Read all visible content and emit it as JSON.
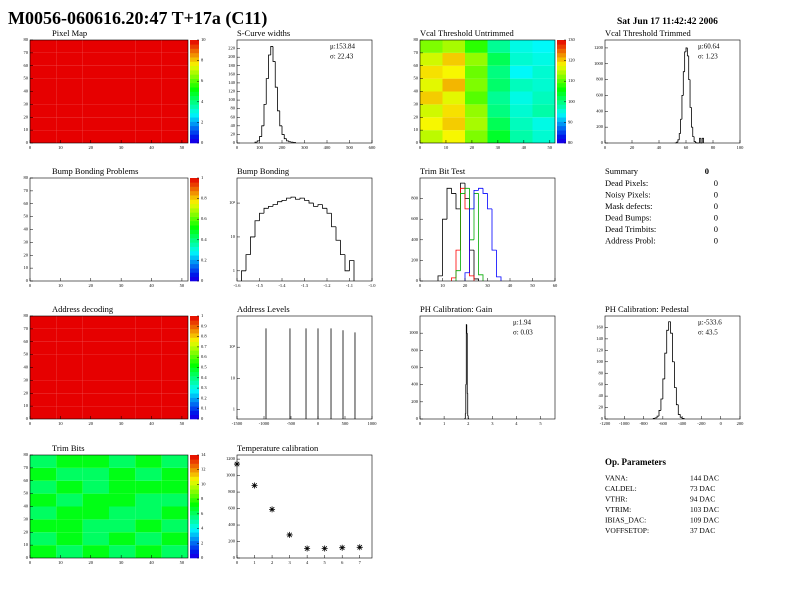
{
  "header": {
    "title": "M0056-060616.20:47 T+17a (C11)",
    "date": "Sat Jun 17 11:42:42 2006"
  },
  "chart_data": [
    {
      "type": "heatmap",
      "title": "Pixel Map",
      "xlim": [
        0,
        52
      ],
      "xticks": [
        0,
        10,
        20,
        30,
        40,
        50
      ],
      "ylim": [
        0,
        80
      ],
      "yticks": [
        0,
        10,
        20,
        30,
        40,
        50,
        60,
        70,
        80
      ],
      "zlim": [
        0,
        10
      ],
      "zticks": [
        0,
        2,
        4,
        6,
        8,
        10
      ],
      "z": [
        [
          10,
          10,
          10,
          10,
          10,
          10
        ],
        [
          10,
          10,
          10,
          10,
          10,
          10
        ],
        [
          10,
          10,
          10,
          10,
          10,
          10
        ],
        [
          10,
          10,
          10,
          10,
          10,
          10
        ],
        [
          10,
          10,
          10,
          10,
          10,
          10
        ],
        [
          10,
          10,
          10,
          10,
          10,
          10
        ],
        [
          10,
          10,
          10,
          10,
          10,
          10
        ],
        [
          10,
          10,
          10,
          10,
          10,
          10
        ]
      ]
    },
    {
      "type": "histogram",
      "title": "S-Curve widths",
      "color": "#000000",
      "xlim": [
        0,
        600
      ],
      "xticks": [
        0,
        100,
        200,
        300,
        400,
        500,
        600
      ],
      "ylim": [
        0,
        240
      ],
      "yticks": [
        0,
        20,
        40,
        60,
        80,
        100,
        120,
        140,
        160,
        180,
        200,
        220
      ],
      "stats": [
        "μ:153.84",
        "σ: 22.43"
      ],
      "bins": [
        80,
        90,
        100,
        110,
        120,
        130,
        140,
        150,
        160,
        170,
        180,
        190,
        200,
        210,
        220,
        230,
        240,
        250,
        260
      ],
      "values": [
        2,
        5,
        15,
        40,
        90,
        150,
        205,
        225,
        190,
        130,
        75,
        40,
        20,
        10,
        5,
        3,
        2,
        1
      ]
    },
    {
      "type": "heatmap",
      "title": "Vcal Threshold Untrimmed",
      "xlim": [
        0,
        52
      ],
      "xticks": [
        0,
        10,
        20,
        30,
        40,
        50
      ],
      "ylim": [
        0,
        80
      ],
      "yticks": [
        0,
        10,
        20,
        30,
        40,
        50,
        60,
        70,
        80
      ],
      "zlim": [
        80,
        130
      ],
      "zticks": [
        80,
        90,
        100,
        110,
        120,
        130
      ],
      "z": [
        [
          115,
          118,
          112,
          104,
          98,
          96
        ],
        [
          118,
          120,
          114,
          102,
          97,
          95
        ],
        [
          116,
          119,
          113,
          100,
          96,
          98
        ],
        [
          120,
          117,
          110,
          99,
          95,
          97
        ],
        [
          117,
          121,
          112,
          101,
          97,
          96
        ],
        [
          119,
          118,
          111,
          100,
          94,
          96
        ],
        [
          116,
          120,
          113,
          102,
          96,
          95
        ],
        [
          112,
          114,
          108,
          99,
          95,
          94
        ]
      ]
    },
    {
      "type": "histogram",
      "title": "Vcal Threshold Trimmed",
      "color": "#000000",
      "xlim": [
        0,
        100
      ],
      "xticks": [
        0,
        20,
        40,
        60,
        80,
        100
      ],
      "ylim": [
        0,
        1300
      ],
      "yticks": [
        0,
        200,
        400,
        600,
        800,
        1000,
        1200
      ],
      "stats": [
        "μ:60.64",
        "σ: 1.23"
      ],
      "bins": [
        52,
        53,
        54,
        55,
        56,
        57,
        58,
        59,
        60,
        61,
        62,
        63,
        64,
        65,
        66,
        67,
        68,
        69,
        70,
        71,
        72,
        73
      ],
      "values": [
        2,
        10,
        40,
        120,
        300,
        600,
        900,
        1150,
        1200,
        1100,
        800,
        450,
        200,
        80,
        20,
        5,
        0,
        0,
        60,
        0,
        60
      ]
    },
    {
      "type": "heatmap",
      "title": "Bump Bonding Problems",
      "xlim": [
        0,
        52
      ],
      "xticks": [
        0,
        10,
        20,
        30,
        40,
        50
      ],
      "ylim": [
        0,
        80
      ],
      "yticks": [
        0,
        10,
        20,
        30,
        40,
        50,
        60,
        70,
        80
      ],
      "zlim": [
        0,
        1
      ],
      "zticks": [
        0,
        0.2,
        0.4,
        0.6,
        0.8,
        1
      ]
    },
    {
      "type": "histogram",
      "title": "Bump Bonding",
      "color": "#000000",
      "logy": true,
      "xlim": [
        -1.6,
        -1.0
      ],
      "xticks": [
        -1.6,
        -1.5,
        -1.4,
        -1.3,
        -1.2,
        -1.1,
        {
          "value": -1.0,
          "label": "-1.0"
        }
      ],
      "ylim": [
        0.5,
        550
      ],
      "yticks": [
        1,
        10,
        {
          "value": 100,
          "label": "10²"
        }
      ],
      "bins": [
        -1.58,
        -1.56,
        -1.54,
        -1.52,
        -1.5,
        -1.48,
        -1.46,
        -1.44,
        -1.42,
        -1.4,
        -1.38,
        -1.36,
        -1.34,
        -1.32,
        -1.3,
        -1.28,
        -1.26,
        -1.24,
        -1.22,
        -1.2,
        -1.18,
        -1.16,
        -1.14,
        -1.12,
        -1.1,
        -1.08
      ],
      "values": [
        1,
        3,
        10,
        30,
        50,
        70,
        80,
        90,
        110,
        120,
        140,
        150,
        130,
        140,
        120,
        100,
        80,
        90,
        70,
        50,
        20,
        8,
        3,
        1,
        2
      ]
    },
    {
      "type": "histograms",
      "title": "Trim Bit Test",
      "xlim": [
        0,
        60
      ],
      "xticks": [
        0,
        10,
        20,
        30,
        40,
        50,
        60
      ],
      "ylim": [
        0,
        1000
      ],
      "yticks": [
        0,
        200,
        400,
        600,
        800
      ],
      "series": [
        {
          "color": "#000000",
          "bins": [
            8,
            10,
            12,
            14,
            16,
            18,
            20,
            22,
            24,
            26
          ],
          "values": [
            50,
            600,
            900,
            850,
            700,
            950,
            800,
            300,
            20
          ]
        },
        {
          "color": "#ff0000",
          "bins": [
            14,
            16,
            18,
            20,
            22,
            24
          ],
          "values": [
            30,
            300,
            900,
            700,
            50
          ]
        },
        {
          "color": "#00aa00",
          "bins": [
            16,
            18,
            20,
            22,
            24,
            26,
            28
          ],
          "values": [
            100,
            850,
            900,
            400,
            850,
            60
          ]
        },
        {
          "color": "#0000ff",
          "bins": [
            20,
            22,
            24,
            26,
            28,
            30,
            32,
            34,
            36
          ],
          "values": [
            80,
            700,
            880,
            900,
            850,
            700,
            300,
            40
          ]
        }
      ]
    },
    {
      "type": "heatmap",
      "title": "Address decoding",
      "xlim": [
        0,
        52
      ],
      "xticks": [
        0,
        10,
        20,
        30,
        40,
        50
      ],
      "ylim": [
        0,
        80
      ],
      "yticks": [
        0,
        10,
        20,
        30,
        40,
        50,
        60,
        70,
        80
      ],
      "zlim": [
        0,
        1
      ],
      "zticks": [
        0,
        0.1,
        0.2,
        0.3,
        0.4,
        0.5,
        0.6,
        0.7,
        0.8,
        0.9,
        1
      ],
      "z": [
        [
          1,
          1,
          1,
          1,
          1,
          1
        ],
        [
          1,
          1,
          1,
          1,
          1,
          1
        ],
        [
          1,
          1,
          1,
          1,
          1,
          1
        ],
        [
          1,
          1,
          1,
          1,
          1,
          1
        ],
        [
          1,
          1,
          1,
          1,
          1,
          1
        ],
        [
          1,
          1,
          1,
          1,
          1,
          1
        ],
        [
          1,
          1,
          1,
          1,
          1,
          1
        ],
        [
          1,
          1,
          1,
          1,
          1,
          1
        ]
      ]
    },
    {
      "type": "spikes",
      "title": "Address Levels",
      "color": "#000000",
      "logy": true,
      "xlim": [
        -1500,
        1000
      ],
      "xticks": [
        -1500,
        -1000,
        -500,
        0,
        500,
        1000
      ],
      "ylim": [
        0.5,
        1000
      ],
      "yticks": [
        1,
        10,
        {
          "value": 100,
          "label": "10²"
        }
      ],
      "x": [
        -963,
        -519,
        -222,
        0,
        241,
        463,
        685
      ],
      "values": [
        400,
        400,
        400,
        400,
        400,
        350,
        300
      ]
    },
    {
      "type": "histogram",
      "title": "PH Calibration: Gain",
      "color": "#000000",
      "xlim": [
        0,
        5.6
      ],
      "xticks": [
        0,
        1,
        2,
        3,
        4,
        5
      ],
      "ylim": [
        0,
        1200
      ],
      "yticks": [
        0,
        200,
        400,
        600,
        800,
        1000
      ],
      "stats": [
        "μ:1.94",
        "σ: 0.03"
      ],
      "bins": [
        1.86,
        1.88,
        1.9,
        1.92,
        1.94,
        1.96,
        1.98,
        2.0,
        2.02
      ],
      "values": [
        5,
        60,
        400,
        1100,
        1000,
        300,
        40,
        3
      ]
    },
    {
      "type": "histogram",
      "title": "PH Calibration: Pedestal",
      "color": "#000000",
      "xlim": [
        -1200,
        200
      ],
      "xticks": [
        -1200,
        -1000,
        -800,
        -600,
        -400,
        -200,
        0,
        200
      ],
      "ylim": [
        0,
        180
      ],
      "yticks": [
        0,
        20,
        40,
        60,
        80,
        100,
        120,
        140,
        160
      ],
      "stats": [
        "μ:-533.6",
        "σ: 43.5"
      ],
      "bins": [
        -700,
        -680,
        -660,
        -640,
        -620,
        -600,
        -580,
        -560,
        -540,
        -520,
        -500,
        -480,
        -460,
        -440,
        -420,
        -400,
        -380
      ],
      "values": [
        1,
        2,
        5,
        15,
        35,
        70,
        115,
        155,
        170,
        150,
        100,
        55,
        25,
        8,
        3,
        1
      ]
    },
    {
      "type": "heatmap",
      "title": "Trim Bits",
      "xlim": [
        0,
        52
      ],
      "xticks": [
        0,
        10,
        20,
        30,
        40,
        50
      ],
      "ylim": [
        0,
        80
      ],
      "yticks": [
        0,
        10,
        20,
        30,
        40,
        50,
        60,
        70,
        80
      ],
      "zlim": [
        0,
        14
      ],
      "zticks": [
        0,
        2,
        4,
        6,
        8,
        10,
        12,
        14
      ],
      "z": [
        [
          7,
          6,
          7,
          6,
          7,
          6
        ],
        [
          6,
          7,
          6,
          7,
          6,
          7
        ],
        [
          7,
          7,
          6,
          6,
          7,
          6
        ],
        [
          6,
          7,
          7,
          6,
          6,
          7
        ],
        [
          7,
          6,
          7,
          7,
          6,
          6
        ],
        [
          6,
          7,
          6,
          7,
          7,
          7
        ],
        [
          7,
          6,
          6,
          7,
          6,
          7
        ],
        [
          6,
          7,
          7,
          6,
          7,
          6
        ]
      ]
    },
    {
      "type": "scatter",
      "title": "Temperature calibration",
      "color": "#000000",
      "xlim": [
        0,
        7.7
      ],
      "xticks": [
        0,
        1,
        2,
        3,
        4,
        5,
        6,
        7
      ],
      "ylim": [
        0,
        1250
      ],
      "yticks": [
        0,
        200,
        400,
        600,
        800,
        1000,
        1200
      ],
      "x": [
        0,
        1,
        2,
        3,
        4,
        5,
        6,
        7
      ],
      "values": [
        1140,
        880,
        590,
        280,
        115,
        115,
        125,
        130
      ]
    }
  ],
  "summary": {
    "title": "Summary",
    "total": 0,
    "rows": [
      {
        "label": "Dead Pixels:",
        "value": 0
      },
      {
        "label": "Noisy Pixels:",
        "value": 0
      },
      {
        "label": "Mask defects:",
        "value": 0
      },
      {
        "label": "Dead Bumps:",
        "value": 0
      },
      {
        "label": "Dead Trimbits:",
        "value": 0
      },
      {
        "label": "Address Probl:",
        "value": 0
      }
    ]
  },
  "op_parameters": {
    "title": "Op. Parameters",
    "rows": [
      {
        "name": "VANA:",
        "value": "144 DAC"
      },
      {
        "name": "CALDEL:",
        "value": "73 DAC"
      },
      {
        "name": "VTHR:",
        "value": "94 DAC"
      },
      {
        "name": "VTRIM:",
        "value": "103 DAC"
      },
      {
        "name": "IBIAS_DAC:",
        "value": "109 DAC"
      },
      {
        "name": "VOFFSETOP:",
        "value": "37 DAC"
      }
    ]
  }
}
